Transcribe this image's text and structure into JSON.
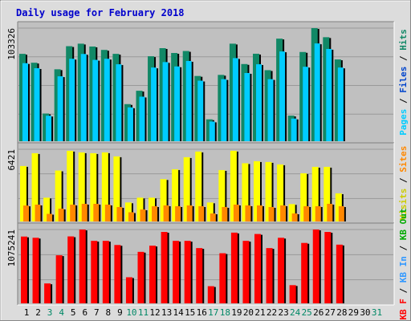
{
  "chart_data": {
    "type": "bar",
    "title": "Daily usage for February 2018",
    "x": [
      "1",
      "2",
      "3",
      "4",
      "5",
      "6",
      "7",
      "8",
      "9",
      "10",
      "11",
      "12",
      "13",
      "14",
      "15",
      "16",
      "17",
      "18",
      "19",
      "20",
      "21",
      "22",
      "23",
      "24",
      "25",
      "26",
      "27",
      "28",
      "29",
      "30",
      "31"
    ],
    "weekend_days": [
      "3",
      "4",
      "10",
      "11",
      "17",
      "18",
      "24",
      "25",
      "31"
    ],
    "panels": [
      {
        "id": "top",
        "max_label": "103326",
        "ylim": [
          0,
          103326
        ],
        "legend": [
          {
            "text": "Pages",
            "color": "#00ccff"
          },
          {
            "text": "Files",
            "color": "#0044cc"
          },
          {
            "text": "Hits",
            "color": "#118866"
          }
        ],
        "series": [
          {
            "name": "Hits",
            "color": "#118866",
            "values": [
              79800,
              71700,
              25300,
              65700,
              86800,
              89100,
              86500,
              83400,
              79800,
              33900,
              46100,
              77600,
              85000,
              80600,
              82400,
              59600,
              20000,
              60600,
              89100,
              70500,
              79900,
              64900,
              93700,
              23400,
              81500,
              103300,
              95000,
              74700,
              0,
              0,
              0
            ]
          },
          {
            "name": "Pages",
            "color": "#00ccff",
            "values": [
              71300,
              66700,
              23300,
              59300,
              75300,
              79700,
              74300,
              75300,
              70300,
              30900,
              40700,
              67300,
              72300,
              68300,
              73300,
              55300,
              18000,
              56700,
              75900,
              62300,
              70300,
              56700,
              82000,
              20700,
              68000,
              89300,
              84300,
              67300,
              0,
              0,
              0
            ]
          }
        ]
      },
      {
        "id": "middle",
        "max_label": "6421",
        "ylim": [
          0,
          6421
        ],
        "legend": [
          {
            "text": "Visits",
            "color": "#cccc00"
          },
          {
            "text": "Sites",
            "color": "#ff8800"
          }
        ],
        "series": [
          {
            "name": "Visits",
            "color": "#ffff00",
            "values": [
              4930,
              6071,
              2119,
              4530,
              6285,
              6143,
              6071,
              6143,
              5786,
              1690,
              2119,
              2119,
              3761,
              4643,
              5714,
              6216,
              1690,
              4571,
              6285,
              5179,
              5357,
              5286,
              5071,
              1548,
              4286,
              4857,
              4857,
              2500,
              0,
              0,
              0
            ]
          },
          {
            "name": "Sites",
            "color": "#ff8800",
            "values": [
              1419,
              1500,
              679,
              1143,
              1500,
              1571,
              1571,
              1500,
              1286,
              822,
              1071,
              1357,
              1429,
              1357,
              1429,
              1357,
              714,
              1286,
              1500,
              1429,
              1429,
              1286,
              1429,
              714,
              1357,
              1357,
              1571,
              1357,
              0,
              0,
              0
            ]
          }
        ]
      },
      {
        "id": "bottom",
        "max_label": "1075241",
        "ylim": [
          0,
          1075241
        ],
        "legend": [
          {
            "text": "KB F",
            "color": "#ff0000"
          },
          {
            "text": "KB In",
            "color": "#3399ff"
          },
          {
            "text": "KB Out",
            "color": "#00aa00"
          }
        ],
        "series": [
          {
            "name": "KB F",
            "color": "#ff0000",
            "values": [
              973000,
              955000,
              290000,
              700000,
              975000,
              1075000,
              910000,
              910000,
              850000,
              380000,
              750000,
              840000,
              1040000,
              910000,
              910000,
              805000,
              250000,
              730000,
              1030000,
              910000,
              1010000,
              805000,
              955000,
              265000,
              880000,
              1075000,
              1040000,
              855000,
              0,
              0,
              0
            ]
          }
        ]
      }
    ]
  }
}
